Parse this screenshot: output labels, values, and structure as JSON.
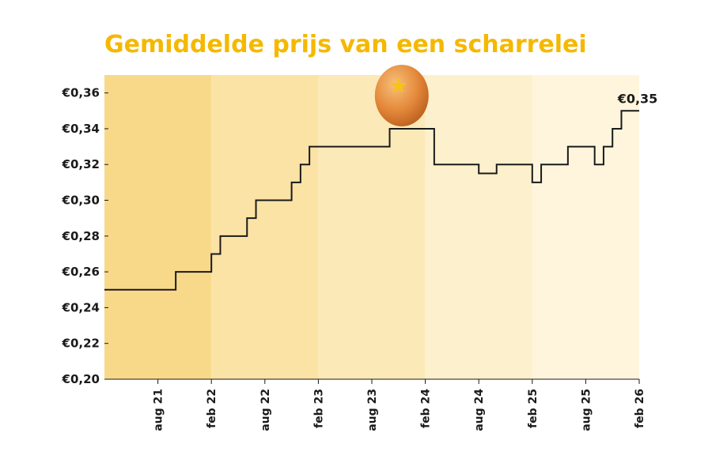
{
  "chart_data": {
    "type": "line",
    "title": "Gemiddelde prijs van een scharrelei",
    "xlabel": "",
    "ylabel": "",
    "ylim": [
      0.2,
      0.37
    ],
    "y_ticks": [
      "€0,20",
      "€0,22",
      "€0,24",
      "€0,26",
      "€0,28",
      "€0,30",
      "€0,32",
      "€0,34",
      "€0,36"
    ],
    "y_tick_values": [
      0.2,
      0.22,
      0.24,
      0.26,
      0.28,
      0.3,
      0.32,
      0.34,
      0.36
    ],
    "x_range": [
      "2021-02",
      "2026-02"
    ],
    "x_ticks": [
      {
        "label": "aug 21",
        "date": "2021-08"
      },
      {
        "label": "feb 22",
        "date": "2022-02"
      },
      {
        "label": "aug 22",
        "date": "2022-08"
      },
      {
        "label": "feb 23",
        "date": "2023-02"
      },
      {
        "label": "aug 23",
        "date": "2023-08"
      },
      {
        "label": "feb 24",
        "date": "2024-02"
      },
      {
        "label": "aug 24",
        "date": "2024-08"
      },
      {
        "label": "feb 25",
        "date": "2025-02"
      },
      {
        "label": "aug 25",
        "date": "2025-08"
      },
      {
        "label": "feb 26",
        "date": "2026-02"
      }
    ],
    "end_label": "€0,35",
    "background_bands": [
      "#f8d98a",
      "#fbe3a6",
      "#fce9b8",
      "#fdf0cc",
      "#fef5dc"
    ],
    "line_color": "#1a1a1a",
    "step_series": [
      {
        "date": "2021-02",
        "value": 0.25
      },
      {
        "date": "2021-10",
        "value": 0.26
      },
      {
        "date": "2022-02",
        "value": 0.27
      },
      {
        "date": "2022-03",
        "value": 0.28
      },
      {
        "date": "2022-06",
        "value": 0.29
      },
      {
        "date": "2022-07",
        "value": 0.3
      },
      {
        "date": "2022-11",
        "value": 0.31
      },
      {
        "date": "2022-12",
        "value": 0.32
      },
      {
        "date": "2023-01",
        "value": 0.33
      },
      {
        "date": "2023-10",
        "value": 0.34
      },
      {
        "date": "2024-03",
        "value": 0.32
      },
      {
        "date": "2024-08",
        "value": 0.315
      },
      {
        "date": "2024-10",
        "value": 0.32
      },
      {
        "date": "2025-02",
        "value": 0.31
      },
      {
        "date": "2025-03",
        "value": 0.32
      },
      {
        "date": "2025-06",
        "value": 0.33
      },
      {
        "date": "2025-09",
        "value": 0.32
      },
      {
        "date": "2025-10",
        "value": 0.33
      },
      {
        "date": "2025-11",
        "value": 0.34
      },
      {
        "date": "2025-12",
        "value": 0.35
      },
      {
        "date": "2026-02",
        "value": 0.35
      }
    ],
    "peak_marker": {
      "icon": "egg-with-star-icon",
      "date": "2023-11",
      "value": 0.34
    }
  }
}
